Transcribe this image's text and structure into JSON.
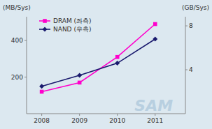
{
  "chart_data": {
    "type": "line",
    "x": [
      2008,
      2009,
      2010,
      2011
    ],
    "xlim": [
      2007.6,
      2011.8
    ],
    "xticks": [
      2008,
      2009,
      2010,
      2011
    ],
    "ylabel": "(MB/Sys)",
    "ylim": [
      0,
      530
    ],
    "yticks": [
      200,
      400
    ],
    "y2label": "(GB/Sys)",
    "y2lim": [
      0,
      8.83
    ],
    "y2ticks": [
      4,
      8
    ],
    "series": [
      {
        "name": "DRAM (좌측)",
        "color": "#FF00CC",
        "marker": "square",
        "values": [
          120,
          170,
          310,
          490
        ]
      },
      {
        "name": "NAND (우측)",
        "color": "#1a1a6e",
        "marker": "diamond",
        "axis": "y2",
        "values": [
          2.5,
          3.5,
          4.6,
          6.8
        ]
      }
    ],
    "annotations": [
      "SAM"
    ],
    "legend": "upper left",
    "grid": false
  }
}
